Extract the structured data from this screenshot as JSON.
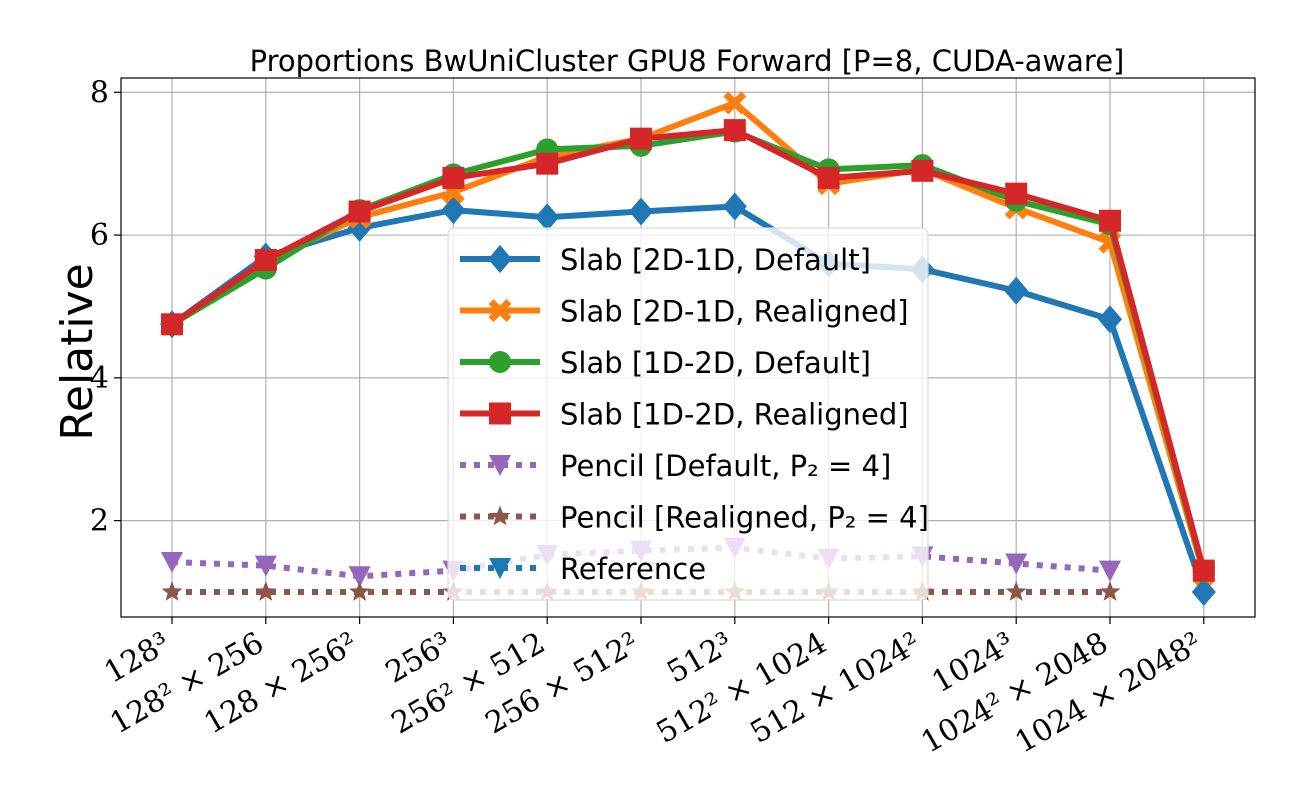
{
  "chart_data": {
    "type": "line",
    "title": "Proportions BwUniCluster GPU8 Forward [P=8, CUDA-aware]",
    "xlabel": "",
    "ylabel": "Relative",
    "categories": [
      "128³",
      "128² × 256",
      "128 × 256²",
      "256³",
      "256² × 512",
      "256 × 512²",
      "512³",
      "512² × 1024",
      "512 × 1024²",
      "1024³",
      "1024² × 2048",
      "1024 × 2048²"
    ],
    "y_ticks": [
      "2",
      "4",
      "6",
      "8"
    ],
    "y_tick_values": [
      2,
      4,
      6,
      8
    ],
    "ylim": [
      0.65,
      8.2
    ],
    "grid": true,
    "legend_placement": "center",
    "series": [
      {
        "name": "Slab [2D-1D, Default]",
        "color": "#1f77b4",
        "marker": "diamond",
        "dash": "solid",
        "values": [
          4.75,
          5.7,
          6.1,
          6.35,
          6.25,
          6.33,
          6.4,
          5.6,
          5.52,
          5.22,
          4.82,
          1.0
        ]
      },
      {
        "name": "Slab [2D-1D, Realigned]",
        "color": "#ff7f0e",
        "marker": "x",
        "dash": "solid",
        "values": [
          4.75,
          5.62,
          6.25,
          6.6,
          7.1,
          7.35,
          7.85,
          6.72,
          6.92,
          6.38,
          5.9,
          1.25
        ]
      },
      {
        "name": "Slab [1D-2D, Default]",
        "color": "#2ca02c",
        "marker": "circle",
        "dash": "solid",
        "values": [
          4.75,
          5.53,
          6.35,
          6.85,
          7.2,
          7.25,
          7.45,
          6.92,
          6.98,
          6.48,
          6.15,
          1.28
        ]
      },
      {
        "name": "Slab [1D-2D, Realigned]",
        "color": "#d62728",
        "marker": "square",
        "dash": "solid",
        "values": [
          4.75,
          5.65,
          6.33,
          6.8,
          7.0,
          7.35,
          7.47,
          6.8,
          6.9,
          6.58,
          6.2,
          1.3
        ]
      },
      {
        "name": "Pencil [Default, P₂ = 4]",
        "color": "#9467bd",
        "marker": "triangle-down",
        "dash": "dotted",
        "values": [
          1.42,
          1.37,
          1.22,
          1.3,
          1.52,
          1.58,
          1.62,
          1.47,
          1.5,
          1.4,
          1.3,
          null
        ]
      },
      {
        "name": "Pencil [Realigned, P₂ = 4]",
        "color": "#8c564b",
        "marker": "star",
        "dash": "dotted",
        "values": [
          1.0,
          1.0,
          1.0,
          1.0,
          1.0,
          1.0,
          1.0,
          1.0,
          1.0,
          1.0,
          1.0,
          null
        ]
      }
    ],
    "legend_entries": [
      {
        "label": "Slab [2D-1D, Default]",
        "color": "#1f77b4",
        "marker": "diamond",
        "dash": "solid"
      },
      {
        "label": "Slab [2D-1D, Realigned]",
        "color": "#ff7f0e",
        "marker": "x",
        "dash": "solid"
      },
      {
        "label": "Slab [1D-2D, Default]",
        "color": "#2ca02c",
        "marker": "circle",
        "dash": "solid"
      },
      {
        "label": "Slab [1D-2D, Realigned]",
        "color": "#d62728",
        "marker": "square",
        "dash": "solid"
      },
      {
        "label": "Pencil [Default, P₂ = 4]",
        "color": "#9467bd",
        "marker": "triangle-down",
        "dash": "dotted"
      },
      {
        "label": "Pencil [Realigned, P₂ = 4]",
        "color": "#8c564b",
        "marker": "star",
        "dash": "dotted"
      },
      {
        "label": "Reference",
        "color": "#1f77b4",
        "marker": "triangle-down",
        "dash": "dotted"
      }
    ]
  }
}
